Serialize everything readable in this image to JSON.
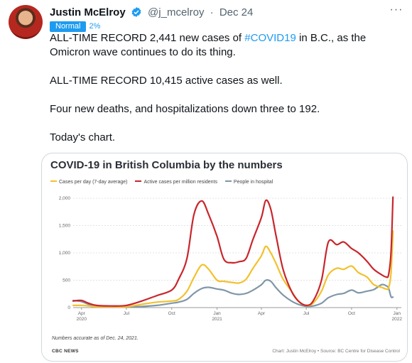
{
  "tweet": {
    "author_name": "Justin McElroy",
    "handle": "@j_mcelroy",
    "separator": "·",
    "date": "Dec 24",
    "more_icon": "more-icon",
    "verified_icon": "verified-badge-icon",
    "badge_label": "Normal",
    "badge_percent": "2%",
    "text": {
      "line1_before": "ALL-TIME RECORD 2,441 new cases of ",
      "hashtag": "#COVID19",
      "line1_after": " in B.C., as the Omicron wave continues to do its thing.",
      "para2": "ALL-TIME RECORD 10,415 active cases as well.",
      "para3": "Four new deaths, and hospitalizations down three to 192.",
      "para4": "Today's chart."
    }
  },
  "colors": {
    "accent": "#1d9bf0",
    "cases": "#f2c12e",
    "active": "#c8262c",
    "hospital": "#7f97a8"
  },
  "chart_data": {
    "type": "line",
    "title": "COVID-19 in British Columbia by the numbers",
    "legend": [
      "Cases per day (7-day average)",
      "Active cases per million residents",
      "People in hospital"
    ],
    "legend_position": "top-left",
    "ylim": [
      0,
      2000
    ],
    "y_ticks": [
      "2,000",
      "1,500",
      "1,000",
      "500",
      "0"
    ],
    "x_ticks": [
      {
        "label": "Apr",
        "sub": "2020"
      },
      {
        "label": "Jul",
        "sub": ""
      },
      {
        "label": "Oct",
        "sub": ""
      },
      {
        "label": "Jan",
        "sub": "2021"
      },
      {
        "label": "Apr",
        "sub": ""
      },
      {
        "label": "Jul",
        "sub": ""
      },
      {
        "label": "Oct",
        "sub": ""
      },
      {
        "label": "Jan",
        "sub": "2022"
      }
    ],
    "grid": true,
    "x": [
      "2020-03-15",
      "2020-04-01",
      "2020-04-15",
      "2020-05-01",
      "2020-06-01",
      "2020-07-01",
      "2020-08-01",
      "2020-09-01",
      "2020-10-01",
      "2020-10-15",
      "2020-11-01",
      "2020-11-15",
      "2020-12-01",
      "2020-12-15",
      "2021-01-01",
      "2021-01-15",
      "2021-02-01",
      "2021-02-15",
      "2021-03-01",
      "2021-03-15",
      "2021-04-01",
      "2021-04-10",
      "2021-04-20",
      "2021-05-01",
      "2021-05-15",
      "2021-06-01",
      "2021-06-15",
      "2021-07-01",
      "2021-07-15",
      "2021-08-01",
      "2021-08-15",
      "2021-09-01",
      "2021-09-15",
      "2021-10-01",
      "2021-10-15",
      "2021-11-01",
      "2021-11-15",
      "2021-12-01",
      "2021-12-10",
      "2021-12-15",
      "2021-12-20",
      "2021-12-24"
    ],
    "series": [
      {
        "name": "Cases per day (7-day average)",
        "values": [
          40,
          40,
          30,
          15,
          15,
          15,
          60,
          100,
          120,
          150,
          300,
          550,
          780,
          700,
          500,
          480,
          460,
          450,
          520,
          720,
          950,
          1120,
          1000,
          800,
          520,
          300,
          120,
          40,
          80,
          300,
          600,
          720,
          700,
          760,
          640,
          560,
          420,
          370,
          340,
          360,
          620,
          1400
        ]
      },
      {
        "name": "Active cases per million residents",
        "values": [
          120,
          130,
          80,
          40,
          30,
          40,
          120,
          220,
          320,
          520,
          900,
          1700,
          1950,
          1700,
          1300,
          880,
          820,
          840,
          900,
          1250,
          1650,
          1960,
          1800,
          1300,
          700,
          300,
          120,
          40,
          120,
          500,
          1200,
          1150,
          1200,
          1080,
          1000,
          850,
          700,
          600,
          560,
          600,
          1000,
          2020
        ]
      },
      {
        "name": "People in hospital",
        "values": [
          130,
          110,
          60,
          20,
          15,
          15,
          20,
          40,
          80,
          100,
          150,
          260,
          350,
          370,
          340,
          320,
          260,
          240,
          260,
          320,
          420,
          500,
          480,
          360,
          230,
          120,
          60,
          25,
          30,
          80,
          180,
          240,
          260,
          320,
          270,
          300,
          330,
          420,
          400,
          360,
          200,
          192
        ]
      }
    ]
  },
  "chart_footer": {
    "note": "Numbers accurate as of Dec. 24, 2021.",
    "source_left": "CBC NEWS",
    "source_right": "Chart: Justin McElroy • Source: BC Centre for Disease Control"
  }
}
